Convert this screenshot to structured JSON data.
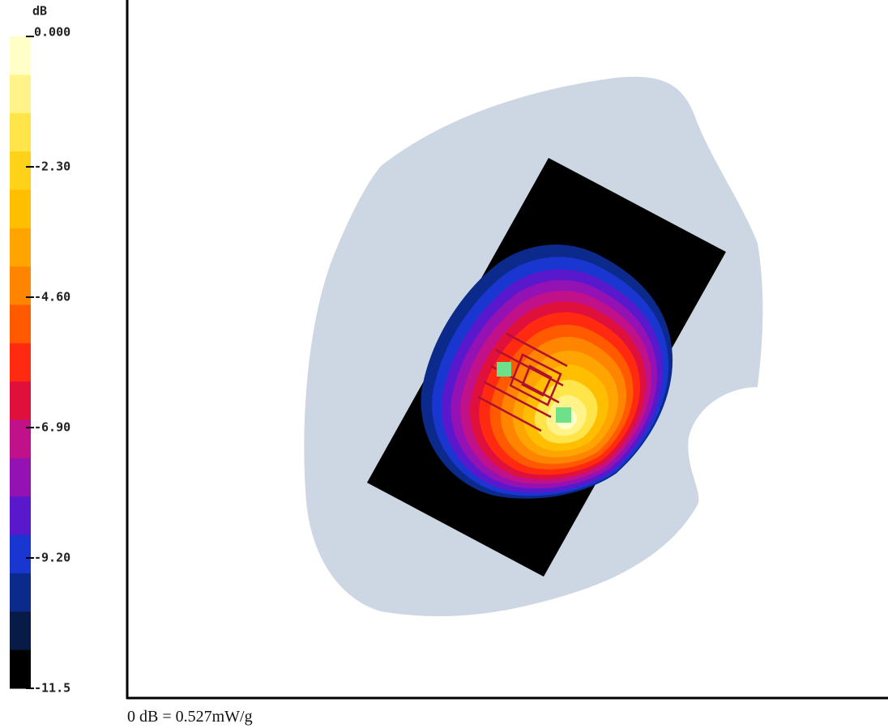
{
  "colorbar": {
    "unit": "dB",
    "lim": [
      -11.5,
      0
    ],
    "ticks": [
      {
        "value": 0,
        "label": "0.000"
      },
      {
        "value": -2.3,
        "label": "-2.30"
      },
      {
        "value": -4.6,
        "label": "-4.60"
      },
      {
        "value": -6.9,
        "label": "-6.90"
      },
      {
        "value": -9.2,
        "label": "-9.20"
      },
      -11.5
    ],
    "colors": [
      "#ffffc8",
      "#fff38a",
      "#ffe44a",
      "#ffd21a",
      "#ffbe00",
      "#ffa400",
      "#ff8400",
      "#ff5a00",
      "#ff2a10",
      "#e0103c",
      "#c0108a",
      "#9412b4",
      "#5a18cc",
      "#1a36d0",
      "#0c2a8c",
      "#081a46",
      "#000000"
    ]
  },
  "footer": "0 dB = 0.527mW/g"
}
